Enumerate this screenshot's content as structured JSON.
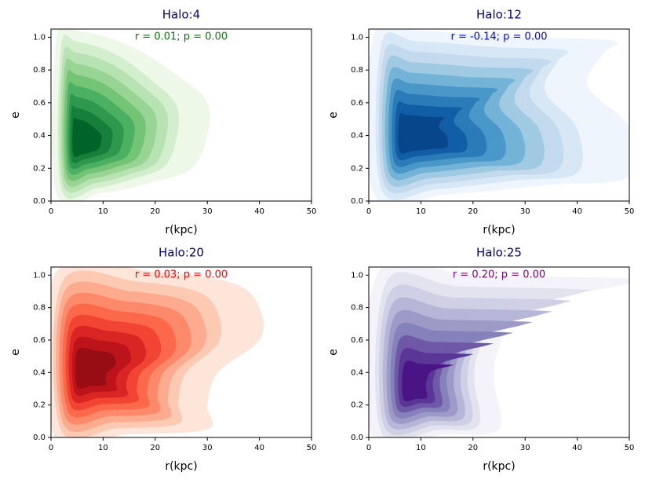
{
  "chart_data": [
    {
      "type": "kde",
      "title": "Halo:4",
      "annotation": "r = 0.01; p = 0.00",
      "annotation_color": "#008000",
      "xlabel": "r(kpc)",
      "ylabel": "e",
      "colors": [
        "#edf8e9",
        "#d3eecd",
        "#b7e2b1",
        "#98d594",
        "#74c476",
        "#4bb062",
        "#2f984f",
        "#157f3b",
        "#006428"
      ],
      "xlim": [
        0,
        50
      ],
      "ylim": [
        0,
        1.05
      ],
      "xticks": [
        0,
        10,
        20,
        30,
        40,
        50
      ],
      "yticks": [
        {
          "value": 0,
          "label": "0.0"
        },
        {
          "value": 0.2,
          "label": "0.2"
        },
        {
          "value": 0.4,
          "label": "0.4"
        },
        {
          "value": 0.6,
          "label": "0.6"
        },
        {
          "value": 0.8,
          "label": "0.8"
        },
        {
          "value": 1,
          "label": "1.0"
        }
      ]
    },
    {
      "type": "kde",
      "title": "Halo:12",
      "annotation": "r = -0.14; p = 0.00",
      "annotation_color": "#0000ff",
      "xlabel": "r(kpc)",
      "ylabel": "e",
      "colors": [
        "#eff5fc",
        "#d8e7f5",
        "#c2d9ee",
        "#a0cae1",
        "#74b3d8",
        "#4a97c9",
        "#2c7bb9",
        "#125ea6",
        "#08468b"
      ],
      "xlim": [
        0,
        50
      ],
      "ylim": [
        0,
        1.05
      ],
      "xticks": [
        0,
        10,
        20,
        30,
        40,
        50
      ],
      "yticks": [
        {
          "value": 0,
          "label": "0.0"
        },
        {
          "value": 0.2,
          "label": "0.2"
        },
        {
          "value": 0.4,
          "label": "0.4"
        },
        {
          "value": 0.6,
          "label": "0.6"
        },
        {
          "value": 0.8,
          "label": "0.8"
        },
        {
          "value": 1,
          "label": "1.0"
        }
      ]
    },
    {
      "type": "kde",
      "title": "Halo:20",
      "annotation": "r = 0.03; p = 0.00",
      "annotation_color": "#ff0000",
      "xlabel": "r(kpc)",
      "ylabel": "e",
      "colors": [
        "#fee5d9",
        "#fcc9b3",
        "#fcab8f",
        "#fc8a6a",
        "#fb694a",
        "#f14432",
        "#d92523",
        "#bc141a",
        "#980c13"
      ],
      "xlim": [
        0,
        50
      ],
      "ylim": [
        0,
        1.05
      ],
      "xticks": [
        0,
        10,
        20,
        30,
        40,
        50
      ],
      "yticks": [
        {
          "value": 0,
          "label": "0.0"
        },
        {
          "value": 0.2,
          "label": "0.2"
        },
        {
          "value": 0.4,
          "label": "0.4"
        },
        {
          "value": 0.6,
          "label": "0.6"
        },
        {
          "value": 0.8,
          "label": "0.8"
        },
        {
          "value": 1,
          "label": "1.0"
        }
      ]
    },
    {
      "type": "kde",
      "title": "Halo:25",
      "annotation": "r = 0.20; p = 0.00",
      "annotation_color": "#800080",
      "xlabel": "r(kpc)",
      "ylabel": "e",
      "colors": [
        "#f4f3f9",
        "#e3e2ef",
        "#cfd0e6",
        "#b6b6d8",
        "#9e9ac8",
        "#8581bb",
        "#6e58a7",
        "#5a3696",
        "#4a1486"
      ],
      "xlim": [
        0,
        50
      ],
      "ylim": [
        0,
        1.05
      ],
      "xticks": [
        0,
        10,
        20,
        30,
        40,
        50
      ],
      "yticks": [
        {
          "value": 0,
          "label": "0.0"
        },
        {
          "value": 0.2,
          "label": "0.2"
        },
        {
          "value": 0.4,
          "label": "0.4"
        },
        {
          "value": 0.6,
          "label": "0.6"
        },
        {
          "value": 0.8,
          "label": "0.8"
        },
        {
          "value": 1,
          "label": "1.0"
        }
      ]
    }
  ]
}
